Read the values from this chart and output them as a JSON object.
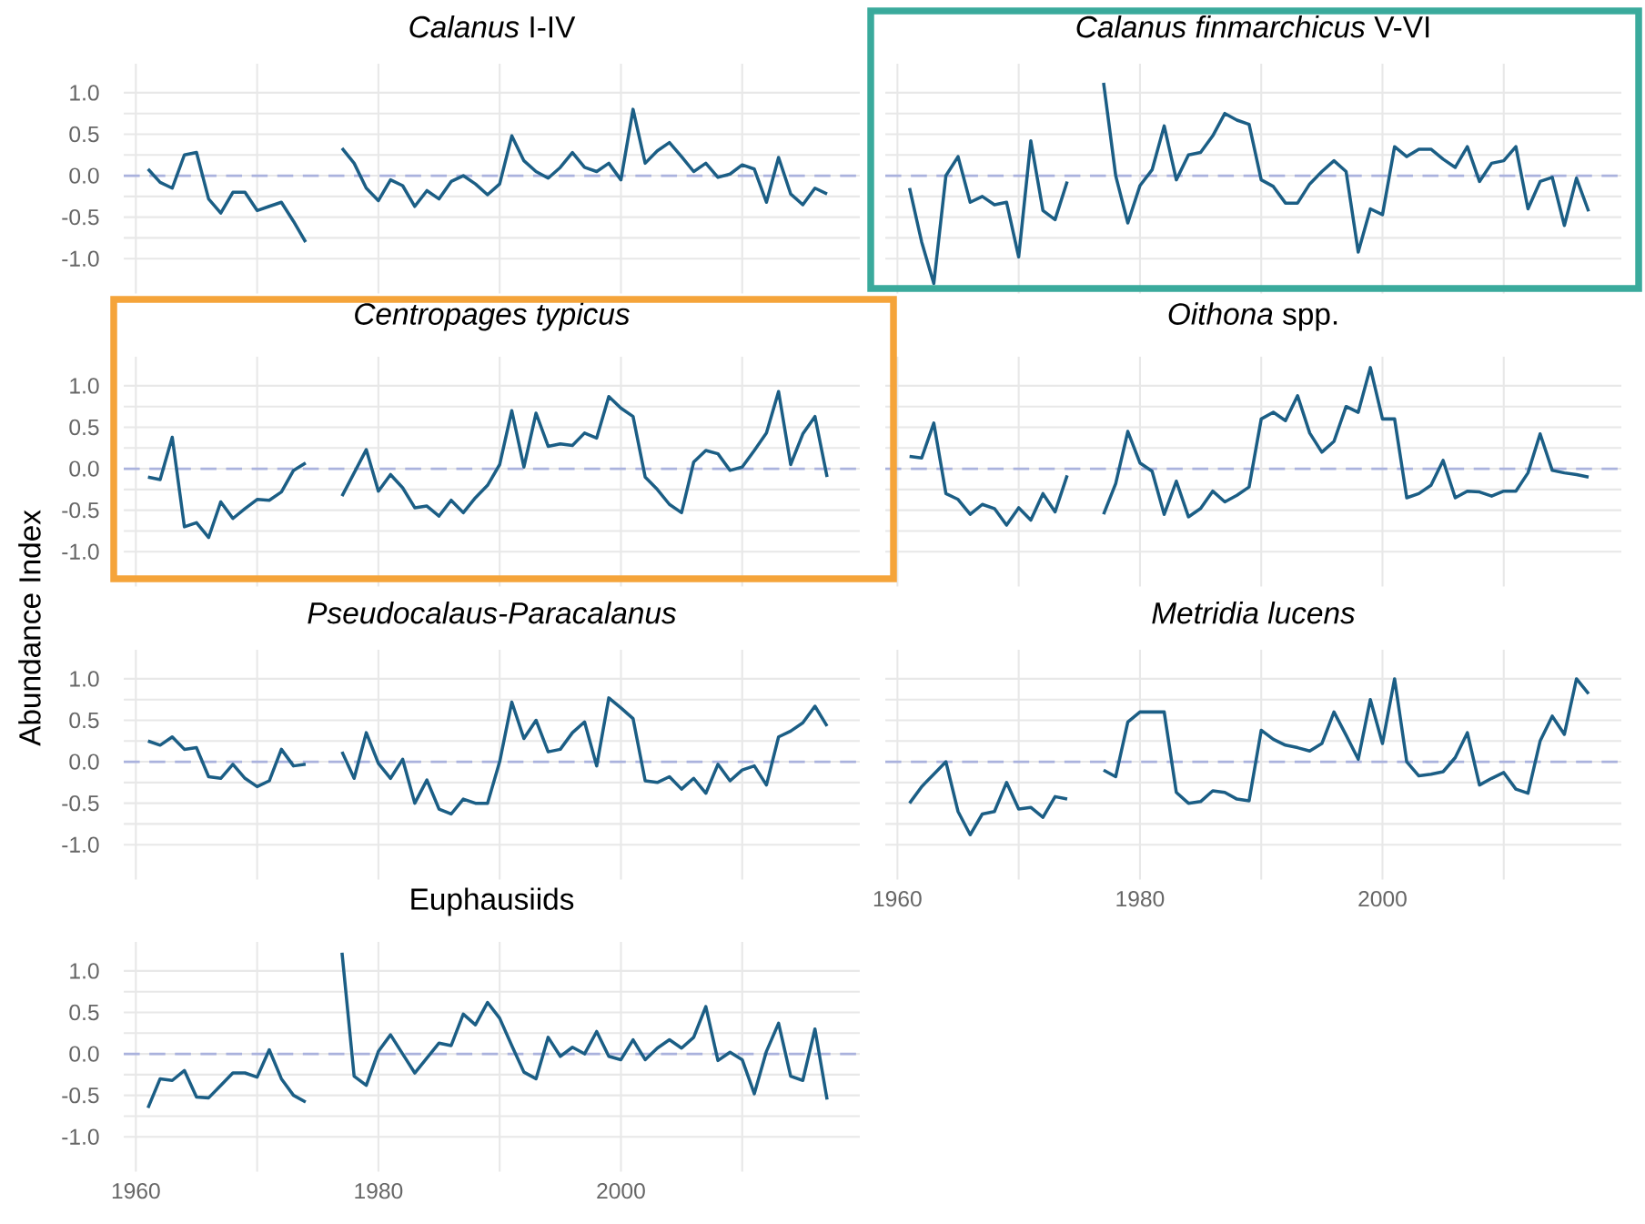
{
  "chart_data": [
    {
      "type": "line",
      "title": "*Calanus* I-IV",
      "tick_labels": "y",
      "grid": true,
      "x": [
        1961,
        1962,
        1963,
        1964,
        1965,
        1966,
        1967,
        1968,
        1969,
        1970,
        1971,
        1972,
        1973,
        1974,
        1975,
        1976,
        1977,
        1978,
        1979,
        1980,
        1981,
        1982,
        1983,
        1984,
        1985,
        1986,
        1987,
        1988,
        1989,
        1990,
        1991,
        1992,
        1993,
        1994,
        1995,
        1996,
        1997,
        1998,
        1999,
        2000,
        2001,
        2002,
        2003,
        2004,
        2005,
        2006,
        2007,
        2008,
        2009,
        2010,
        2011,
        2012,
        2013,
        2014,
        2015,
        2016,
        2017
      ],
      "series": [
        {
          "color": "#1b5e85",
          "values": [
            0.08,
            -0.08,
            -0.15,
            0.25,
            0.28,
            -0.28,
            -0.45,
            -0.2,
            -0.2,
            -0.42,
            -0.37,
            -0.32,
            -0.55,
            -0.8,
            null,
            null,
            0.33,
            0.15,
            -0.15,
            -0.3,
            -0.05,
            -0.12,
            -0.37,
            -0.18,
            -0.28,
            -0.07,
            0.0,
            -0.1,
            -0.23,
            -0.1,
            0.48,
            0.18,
            0.05,
            -0.03,
            0.1,
            0.28,
            0.1,
            0.05,
            0.15,
            -0.05,
            0.8,
            0.15,
            0.3,
            0.4,
            0.23,
            0.05,
            0.15,
            -0.02,
            0.02,
            0.13,
            0.08,
            -0.32,
            0.22,
            -0.22,
            -0.35,
            -0.15,
            -0.22
          ]
        }
      ],
      "xlim": [
        1959,
        2019.7
      ],
      "ylim": [
        -1.42,
        1.35
      ],
      "xticks": [
        1960,
        {
          "value": 1970,
          "label": null
        },
        1980,
        {
          "value": 1990,
          "label": null
        },
        2000,
        {
          "value": 2010,
          "label": null
        }
      ],
      "yticks": [
        {
          "value": -1,
          "label": "-1.0"
        },
        {
          "value": -0.75,
          "label": null
        },
        {
          "value": -0.5,
          "label": "-0.5"
        },
        {
          "value": -0.25,
          "label": null
        },
        {
          "value": 0,
          "label": "0.0"
        },
        {
          "value": 0.25,
          "label": null
        },
        {
          "value": 0.5,
          "label": "0.5"
        },
        {
          "value": 0.75,
          "label": null
        },
        {
          "value": 1,
          "label": "1.0"
        }
      ],
      "ref_lines": [
        {
          "axis": "y",
          "value": 0,
          "color": "#aab2dd",
          "line_style": "dashed"
        }
      ]
    },
    {
      "type": "line",
      "title": "*Calanus finmarchicus* V-VI",
      "tick_labels": false,
      "grid": true,
      "x": [
        1961,
        1962,
        1963,
        1964,
        1965,
        1966,
        1967,
        1968,
        1969,
        1970,
        1971,
        1972,
        1973,
        1974,
        1975,
        1976,
        1977,
        1978,
        1979,
        1980,
        1981,
        1982,
        1983,
        1984,
        1985,
        1986,
        1987,
        1988,
        1989,
        1990,
        1991,
        1992,
        1993,
        1994,
        1995,
        1996,
        1997,
        1998,
        1999,
        2000,
        2001,
        2002,
        2003,
        2004,
        2005,
        2006,
        2007,
        2008,
        2009,
        2010,
        2011,
        2012,
        2013,
        2014,
        2015,
        2016,
        2017
      ],
      "series": [
        {
          "color": "#1b5e85",
          "values": [
            -0.15,
            -0.8,
            -1.3,
            0.0,
            0.23,
            -0.32,
            -0.25,
            -0.35,
            -0.32,
            -0.98,
            0.42,
            -0.42,
            -0.53,
            -0.07,
            null,
            null,
            1.12,
            0.0,
            -0.57,
            -0.12,
            0.07,
            0.6,
            -0.05,
            0.25,
            0.28,
            0.48,
            0.75,
            0.67,
            0.62,
            -0.05,
            -0.13,
            -0.33,
            -0.33,
            -0.1,
            0.05,
            0.18,
            0.05,
            -0.92,
            -0.4,
            -0.47,
            0.35,
            0.23,
            0.32,
            0.32,
            0.2,
            0.1,
            0.35,
            -0.07,
            0.15,
            0.18,
            0.35,
            -0.4,
            -0.07,
            -0.02,
            -0.6,
            -0.03,
            -0.43
          ]
        }
      ],
      "xlim": [
        1959,
        2019.7
      ],
      "ylim": [
        -1.42,
        1.35
      ],
      "xticks": [
        1960,
        {
          "value": 1970,
          "label": null
        },
        1980,
        {
          "value": 1990,
          "label": null
        },
        2000,
        {
          "value": 2010,
          "label": null
        }
      ],
      "yticks": [
        {
          "value": -1,
          "label": null
        },
        {
          "value": -0.75,
          "label": null
        },
        {
          "value": -0.5,
          "label": null
        },
        {
          "value": -0.25,
          "label": null
        },
        {
          "value": 0,
          "label": null
        },
        {
          "value": 0.25,
          "label": null
        },
        {
          "value": 0.5,
          "label": null
        },
        {
          "value": 0.75,
          "label": null
        },
        {
          "value": 1,
          "label": null
        }
      ],
      "ref_lines": [
        {
          "axis": "y",
          "value": 0,
          "color": "#aab2dd",
          "line_style": "dashed"
        }
      ]
    },
    {
      "type": "line",
      "title": "*Centropages typicus*",
      "ylabel": "Abundance Index",
      "tick_labels": "y",
      "grid": true,
      "x": [
        1961,
        1962,
        1963,
        1964,
        1965,
        1966,
        1967,
        1968,
        1969,
        1970,
        1971,
        1972,
        1973,
        1974,
        1975,
        1976,
        1977,
        1978,
        1979,
        1980,
        1981,
        1982,
        1983,
        1984,
        1985,
        1986,
        1987,
        1988,
        1989,
        1990,
        1991,
        1992,
        1993,
        1994,
        1995,
        1996,
        1997,
        1998,
        1999,
        2000,
        2001,
        2002,
        2003,
        2004,
        2005,
        2006,
        2007,
        2008,
        2009,
        2010,
        2011,
        2012,
        2013,
        2014,
        2015,
        2016,
        2017
      ],
      "series": [
        {
          "color": "#1b5e85",
          "values": [
            -0.1,
            -0.13,
            0.38,
            -0.7,
            -0.65,
            -0.83,
            -0.4,
            -0.6,
            -0.48,
            -0.37,
            -0.38,
            -0.28,
            -0.02,
            0.07,
            null,
            null,
            -0.33,
            -0.05,
            0.23,
            -0.27,
            -0.07,
            -0.23,
            -0.47,
            -0.45,
            -0.57,
            -0.38,
            -0.53,
            -0.35,
            -0.2,
            0.05,
            0.7,
            0.02,
            0.67,
            0.27,
            0.3,
            0.28,
            0.43,
            0.37,
            0.87,
            0.73,
            0.63,
            -0.1,
            -0.25,
            -0.43,
            -0.53,
            0.08,
            0.22,
            0.18,
            -0.02,
            0.02,
            0.22,
            0.43,
            0.93,
            0.05,
            0.42,
            0.63,
            -0.1
          ]
        }
      ],
      "xlim": [
        1959,
        2019.7
      ],
      "ylim": [
        -1.42,
        1.35
      ],
      "xticks": [
        1960,
        {
          "value": 1970,
          "label": null
        },
        1980,
        {
          "value": 1990,
          "label": null
        },
        2000,
        {
          "value": 2010,
          "label": null
        }
      ],
      "yticks": [
        {
          "value": -1,
          "label": "-1.0"
        },
        {
          "value": -0.75,
          "label": null
        },
        {
          "value": -0.5,
          "label": "-0.5"
        },
        {
          "value": -0.25,
          "label": null
        },
        {
          "value": 0,
          "label": "0.0"
        },
        {
          "value": 0.25,
          "label": null
        },
        {
          "value": 0.5,
          "label": "0.5"
        },
        {
          "value": 0.75,
          "label": null
        },
        {
          "value": 1,
          "label": "1.0"
        }
      ],
      "ref_lines": [
        {
          "axis": "y",
          "value": 0,
          "color": "#aab2dd",
          "line_style": "dashed"
        }
      ]
    },
    {
      "type": "line",
      "title": "*Oithona* spp.",
      "tick_labels": false,
      "grid": true,
      "x": [
        1961,
        1962,
        1963,
        1964,
        1965,
        1966,
        1967,
        1968,
        1969,
        1970,
        1971,
        1972,
        1973,
        1974,
        1975,
        1976,
        1977,
        1978,
        1979,
        1980,
        1981,
        1982,
        1983,
        1984,
        1985,
        1986,
        1987,
        1988,
        1989,
        1990,
        1991,
        1992,
        1993,
        1994,
        1995,
        1996,
        1997,
        1998,
        1999,
        2000,
        2001,
        2002,
        2003,
        2004,
        2005,
        2006,
        2007,
        2008,
        2009,
        2010,
        2011,
        2012,
        2013,
        2014,
        2015,
        2016,
        2017
      ],
      "series": [
        {
          "color": "#1b5e85",
          "values": [
            0.15,
            0.13,
            0.55,
            -0.3,
            -0.37,
            -0.55,
            -0.43,
            -0.48,
            -0.68,
            -0.47,
            -0.62,
            -0.3,
            -0.52,
            -0.08,
            null,
            null,
            -0.55,
            -0.18,
            0.45,
            0.07,
            -0.03,
            -0.55,
            -0.15,
            -0.58,
            -0.48,
            -0.27,
            -0.4,
            -0.32,
            -0.22,
            0.6,
            0.68,
            0.58,
            0.88,
            0.43,
            0.2,
            0.33,
            0.75,
            0.68,
            1.22,
            0.6,
            0.6,
            -0.35,
            -0.3,
            -0.2,
            0.1,
            -0.35,
            -0.27,
            -0.28,
            -0.33,
            -0.27,
            -0.27,
            -0.05,
            0.42,
            -0.02,
            -0.05,
            -0.07,
            -0.1
          ]
        }
      ],
      "xlim": [
        1959,
        2019.7
      ],
      "ylim": [
        -1.42,
        1.35
      ],
      "xticks": [
        1960,
        {
          "value": 1970,
          "label": null
        },
        1980,
        {
          "value": 1990,
          "label": null
        },
        2000,
        {
          "value": 2010,
          "label": null
        }
      ],
      "yticks": [
        {
          "value": -1,
          "label": null
        },
        {
          "value": -0.75,
          "label": null
        },
        {
          "value": -0.5,
          "label": null
        },
        {
          "value": -0.25,
          "label": null
        },
        {
          "value": 0,
          "label": null
        },
        {
          "value": 0.25,
          "label": null
        },
        {
          "value": 0.5,
          "label": null
        },
        {
          "value": 0.75,
          "label": null
        },
        {
          "value": 1,
          "label": null
        }
      ],
      "ref_lines": [
        {
          "axis": "y",
          "value": 0,
          "color": "#aab2dd",
          "line_style": "dashed"
        }
      ]
    },
    {
      "type": "line",
      "title": "*Pseudocalaus-Paracalanus*",
      "tick_labels": "y",
      "grid": true,
      "x": [
        1961,
        1962,
        1963,
        1964,
        1965,
        1966,
        1967,
        1968,
        1969,
        1970,
        1971,
        1972,
        1973,
        1974,
        1975,
        1976,
        1977,
        1978,
        1979,
        1980,
        1981,
        1982,
        1983,
        1984,
        1985,
        1986,
        1987,
        1988,
        1989,
        1990,
        1991,
        1992,
        1993,
        1994,
        1995,
        1996,
        1997,
        1998,
        1999,
        2000,
        2001,
        2002,
        2003,
        2004,
        2005,
        2006,
        2007,
        2008,
        2009,
        2010,
        2011,
        2012,
        2013,
        2014,
        2015,
        2016,
        2017
      ],
      "series": [
        {
          "color": "#1b5e85",
          "values": [
            0.25,
            0.2,
            0.3,
            0.15,
            0.17,
            -0.18,
            -0.2,
            -0.03,
            -0.2,
            -0.3,
            -0.23,
            0.15,
            -0.05,
            -0.03,
            null,
            null,
            0.12,
            -0.2,
            0.35,
            -0.02,
            -0.2,
            0.03,
            -0.5,
            -0.22,
            -0.57,
            -0.63,
            -0.45,
            -0.5,
            -0.5,
            0.0,
            0.72,
            0.28,
            0.5,
            0.12,
            0.15,
            0.35,
            0.48,
            -0.05,
            0.77,
            0.65,
            0.52,
            -0.23,
            -0.25,
            -0.18,
            -0.33,
            -0.2,
            -0.38,
            -0.03,
            -0.23,
            -0.1,
            -0.05,
            -0.28,
            0.3,
            0.37,
            0.47,
            0.67,
            0.43
          ]
        }
      ],
      "xlim": [
        1959,
        2019.7
      ],
      "ylim": [
        -1.42,
        1.35
      ],
      "xticks": [
        1960,
        {
          "value": 1970,
          "label": null
        },
        1980,
        {
          "value": 1990,
          "label": null
        },
        2000,
        {
          "value": 2010,
          "label": null
        }
      ],
      "yticks": [
        {
          "value": -1,
          "label": "-1.0"
        },
        {
          "value": -0.75,
          "label": null
        },
        {
          "value": -0.5,
          "label": "-0.5"
        },
        {
          "value": -0.25,
          "label": null
        },
        {
          "value": 0,
          "label": "0.0"
        },
        {
          "value": 0.25,
          "label": null
        },
        {
          "value": 0.5,
          "label": "0.5"
        },
        {
          "value": 0.75,
          "label": null
        },
        {
          "value": 1,
          "label": "1.0"
        }
      ],
      "ref_lines": [
        {
          "axis": "y",
          "value": 0,
          "color": "#aab2dd",
          "line_style": "dashed"
        }
      ]
    },
    {
      "type": "line",
      "title": "*Metridia lucens*",
      "tick_labels": "x",
      "grid": true,
      "x": [
        1961,
        1962,
        1963,
        1964,
        1965,
        1966,
        1967,
        1968,
        1969,
        1970,
        1971,
        1972,
        1973,
        1974,
        1975,
        1976,
        1977,
        1978,
        1979,
        1980,
        1981,
        1982,
        1983,
        1984,
        1985,
        1986,
        1987,
        1988,
        1989,
        1990,
        1991,
        1992,
        1993,
        1994,
        1995,
        1996,
        1997,
        1998,
        1999,
        2000,
        2001,
        2002,
        2003,
        2004,
        2005,
        2006,
        2007,
        2008,
        2009,
        2010,
        2011,
        2012,
        2013,
        2014,
        2015,
        2016,
        2017
      ],
      "series": [
        {
          "color": "#1b5e85",
          "values": [
            -0.5,
            -0.3,
            -0.15,
            0.0,
            -0.6,
            -0.88,
            -0.63,
            -0.6,
            -0.25,
            -0.57,
            -0.55,
            -0.67,
            -0.42,
            -0.45,
            null,
            null,
            -0.1,
            -0.18,
            0.48,
            0.6,
            0.6,
            0.6,
            -0.37,
            -0.5,
            -0.48,
            -0.35,
            -0.37,
            -0.45,
            -0.47,
            0.38,
            0.27,
            0.2,
            0.17,
            0.13,
            0.22,
            0.6,
            0.32,
            0.03,
            0.75,
            0.22,
            1.0,
            0.0,
            -0.17,
            -0.15,
            -0.12,
            0.05,
            0.35,
            -0.28,
            -0.2,
            -0.13,
            -0.33,
            -0.38,
            0.25,
            0.55,
            0.33,
            1.0,
            0.82
          ]
        }
      ],
      "xlim": [
        1959,
        2019.7
      ],
      "ylim": [
        -1.42,
        1.35
      ],
      "xticks": [
        1960,
        {
          "value": 1970,
          "label": null
        },
        1980,
        {
          "value": 1990,
          "label": null
        },
        2000,
        {
          "value": 2010,
          "label": null
        }
      ],
      "yticks": [
        {
          "value": -1,
          "label": null
        },
        {
          "value": -0.75,
          "label": null
        },
        {
          "value": -0.5,
          "label": null
        },
        {
          "value": -0.25,
          "label": null
        },
        {
          "value": 0,
          "label": null
        },
        {
          "value": 0.25,
          "label": null
        },
        {
          "value": 0.5,
          "label": null
        },
        {
          "value": 0.75,
          "label": null
        },
        {
          "value": 1,
          "label": null
        }
      ],
      "ref_lines": [
        {
          "axis": "y",
          "value": 0,
          "color": "#aab2dd",
          "line_style": "dashed"
        }
      ]
    },
    {
      "type": "line",
      "title": "Euphausiids",
      "grid": true,
      "x": [
        1961,
        1962,
        1963,
        1964,
        1965,
        1966,
        1967,
        1968,
        1969,
        1970,
        1971,
        1972,
        1973,
        1974,
        1975,
        1976,
        1977,
        1978,
        1979,
        1980,
        1981,
        1982,
        1983,
        1984,
        1985,
        1986,
        1987,
        1988,
        1989,
        1990,
        1991,
        1992,
        1993,
        1994,
        1995,
        1996,
        1997,
        1998,
        1999,
        2000,
        2001,
        2002,
        2003,
        2004,
        2005,
        2006,
        2007,
        2008,
        2009,
        2010,
        2011,
        2012,
        2013,
        2014,
        2015,
        2016,
        2017
      ],
      "series": [
        {
          "color": "#1b5e85",
          "values": [
            -0.65,
            -0.3,
            -0.32,
            -0.2,
            -0.52,
            -0.53,
            -0.38,
            -0.23,
            -0.23,
            -0.28,
            0.05,
            -0.3,
            -0.5,
            -0.58,
            null,
            null,
            1.22,
            -0.27,
            -0.38,
            0.03,
            0.23,
            0.0,
            -0.23,
            -0.05,
            0.13,
            0.1,
            0.48,
            0.35,
            0.62,
            0.43,
            0.1,
            -0.22,
            -0.3,
            0.2,
            -0.03,
            0.08,
            0.0,
            0.27,
            -0.03,
            -0.07,
            0.17,
            -0.07,
            0.07,
            0.17,
            0.07,
            0.2,
            0.57,
            -0.08,
            0.02,
            -0.07,
            -0.48,
            0.03,
            0.37,
            -0.27,
            -0.32,
            0.3,
            -0.55
          ]
        }
      ],
      "xlim": [
        1959,
        2019.7
      ],
      "ylim": [
        -1.42,
        1.35
      ],
      "xticks": [
        1960,
        {
          "value": 1970,
          "label": null
        },
        1980,
        {
          "value": 1990,
          "label": null
        },
        2000,
        {
          "value": 2010,
          "label": null
        }
      ],
      "yticks": [
        {
          "value": -1,
          "label": "-1.0"
        },
        {
          "value": -0.75,
          "label": null
        },
        {
          "value": -0.5,
          "label": "-0.5"
        },
        {
          "value": -0.25,
          "label": null
        },
        {
          "value": 0,
          "label": "0.0"
        },
        {
          "value": 0.25,
          "label": null
        },
        {
          "value": 0.5,
          "label": "0.5"
        },
        {
          "value": 0.75,
          "label": null
        },
        {
          "value": 1,
          "label": "1.0"
        }
      ],
      "ref_lines": [
        {
          "axis": "y",
          "value": 0,
          "color": "#aab2dd",
          "line_style": "dashed"
        }
      ]
    }
  ]
}
